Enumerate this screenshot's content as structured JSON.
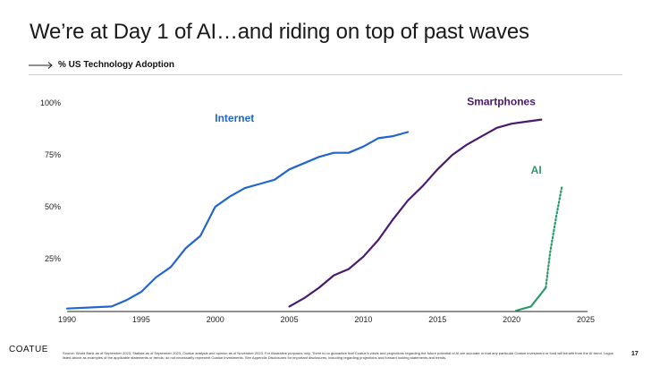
{
  "header": {
    "title": "We’re at Day 1 of AI…and riding on top of past waves",
    "subtitle": "% US Technology Adoption"
  },
  "chart_data": {
    "type": "line",
    "xlabel": "",
    "ylabel": "",
    "xlim": [
      1990,
      2025
    ],
    "ylim": [
      0,
      100
    ],
    "x_ticks": [
      "1990",
      "1995",
      "2000",
      "2005",
      "2010",
      "2015",
      "2020",
      "2025"
    ],
    "y_ticks": [
      "25%",
      "50%",
      "75%",
      "100%"
    ],
    "grid": false,
    "legend": "labels next to lines",
    "series": [
      {
        "name": "Internet",
        "color": "#2266cc",
        "x": [
          1990,
          1993,
          1994,
          1995,
          1996,
          1997,
          1998,
          1999,
          2000,
          2001,
          2002,
          2003,
          2004,
          2005,
          2006,
          2007,
          2008,
          2009,
          2010,
          2011,
          2012,
          2013
        ],
        "y": [
          1,
          2,
          5,
          9,
          16,
          21,
          30,
          36,
          50,
          55,
          59,
          61,
          63,
          68,
          71,
          74,
          76,
          76,
          79,
          83,
          84,
          86
        ]
      },
      {
        "name": "Smartphones",
        "color": "#4a1a6e",
        "x": [
          2005,
          2006,
          2007,
          2008,
          2009,
          2010,
          2011,
          2012,
          2013,
          2014,
          2015,
          2016,
          2017,
          2018,
          2019,
          2020,
          2021,
          2022
        ],
        "y": [
          2,
          6,
          11,
          17,
          20,
          26,
          34,
          44,
          53,
          60,
          68,
          75,
          80,
          84,
          88,
          90,
          91,
          92
        ]
      },
      {
        "name": "AI",
        "color": "#2a9a6a",
        "x": [
          2020.3,
          2021.3,
          2022.3
        ],
        "y": [
          0,
          2,
          11
        ],
        "projection": {
          "style": "dotted",
          "x": [
            2022.3,
            2022.6,
            2023.0,
            2023.4
          ],
          "y": [
            11,
            28,
            45,
            60
          ]
        }
      }
    ]
  },
  "footer": {
    "logo": "COATUE",
    "source": "Source: World Bank as of September 2023, Statista as of September 2023, Coatue analysis and opinion as of November 2023. For illustrative purposes only. There is no guarantee that Coatue’s views and projections regarding the future potential of AI are accurate or that any particular Coatue investment or fund will benefit from the AI trend. Logos listed above as examples of the applicable statements or trends; do not necessarily represent Coatue investments. See Appendix Disclosures for important disclosures, including regarding projections and forward looking statements and trends.",
    "page_number": "17"
  }
}
